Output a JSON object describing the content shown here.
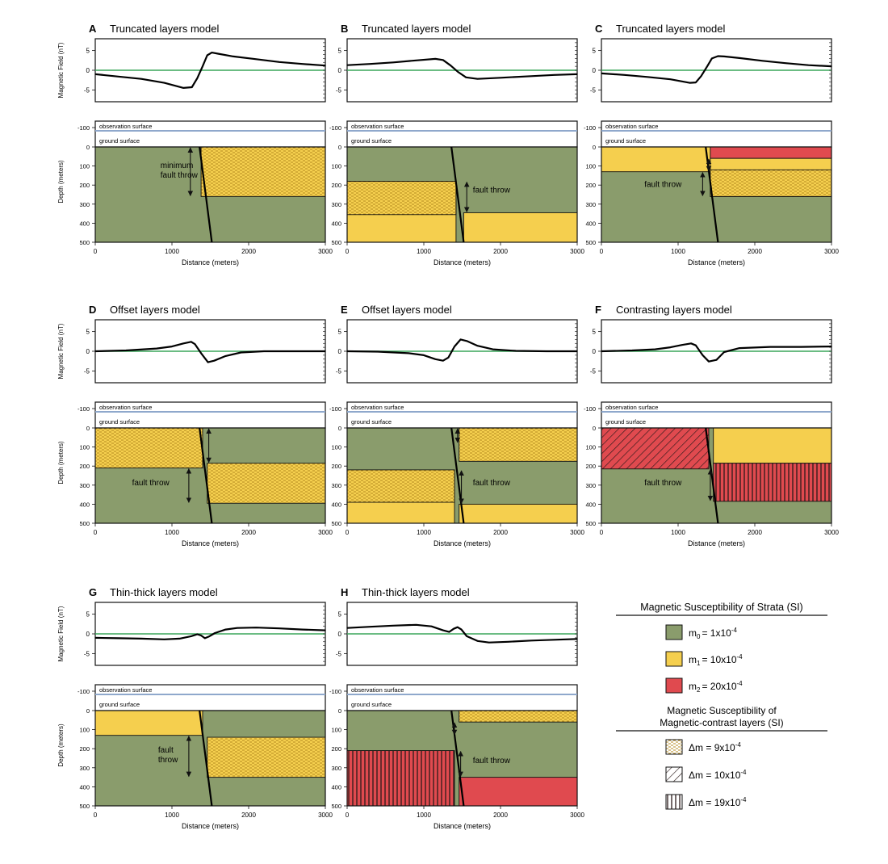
{
  "colors": {
    "green": "#8a9c6c",
    "yellow": "#f5cf4e",
    "red": "#e04a4f",
    "zero_line": "#3aa55a",
    "obs_line": "#8fa8cc"
  },
  "common": {
    "observation_surface": "observation surface",
    "ground_surface": "ground surface",
    "x_axis_label": "Distance (meters)",
    "y_axis_label_mag": "Magnetic Field (nT)",
    "y_axis_label_depth": "Depth (meters)",
    "x_ticks": [
      "0",
      "1000",
      "2000",
      "3000"
    ],
    "mag_ticks": [
      "5",
      "0",
      "-5"
    ],
    "depth_ticks": [
      "-100",
      "0",
      "100",
      "200",
      "300",
      "400",
      "500"
    ]
  },
  "chart_data": [
    {
      "type": "line",
      "id": "A",
      "letter": "A",
      "title": "Truncated layers model",
      "xlim": [
        0,
        3000
      ],
      "ylim": [
        -8,
        8
      ],
      "x": [
        0,
        300,
        600,
        900,
        1150,
        1260,
        1330,
        1400,
        1460,
        1520,
        1600,
        1800,
        2100,
        2400,
        2700,
        3000
      ],
      "y": [
        -1,
        -1.6,
        -2.2,
        -3.2,
        -4.5,
        -4.3,
        -2,
        1,
        3.8,
        4.5,
        4.2,
        3.5,
        2.8,
        2.1,
        1.6,
        1.2
      ],
      "section": {
        "units": [
          {
            "fill": "green",
            "x0": 0,
            "x1": 3000,
            "d0": 0,
            "d1": 500
          },
          {
            "fill": "yellow",
            "pattern": "dots",
            "x0": 1380,
            "x1": 3000,
            "d0": 0,
            "d1": 260
          }
        ],
        "fault": {
          "x_top": 1360,
          "x_bottom": 1520
        },
        "arrows": [
          {
            "x": 1240,
            "d0": 0,
            "d1": 260
          }
        ],
        "throw_label": [
          "minimum",
          "fault throw"
        ],
        "throw_label_pos": [
          850,
          110
        ]
      }
    },
    {
      "type": "line",
      "id": "B",
      "letter": "B",
      "title": "Truncated layers model",
      "xlim": [
        0,
        3000
      ],
      "ylim": [
        -8,
        8
      ],
      "x": [
        0,
        300,
        600,
        900,
        1150,
        1250,
        1350,
        1450,
        1550,
        1700,
        2000,
        2400,
        2700,
        3000
      ],
      "y": [
        1.3,
        1.6,
        2,
        2.5,
        2.9,
        2.6,
        1.2,
        -0.5,
        -1.8,
        -2.2,
        -1.9,
        -1.5,
        -1.2,
        -1
      ],
      "section": {
        "units": [
          {
            "fill": "green",
            "x0": 0,
            "x1": 3000,
            "d0": 0,
            "d1": 500
          },
          {
            "fill": "yellow",
            "x0": 0,
            "x1": 1420,
            "d0": 180,
            "d1": 500
          },
          {
            "fill": "yellow",
            "pattern": "dots",
            "x0": 0,
            "x1": 1420,
            "d0": 180,
            "d1": 355
          },
          {
            "fill": "yellow",
            "x0": 1520,
            "x1": 3000,
            "d0": 345,
            "d1": 500
          }
        ],
        "fault": {
          "x_top": 1360,
          "x_bottom": 1520
        },
        "arrows": [
          {
            "x": 1560,
            "d0": 180,
            "d1": 345
          }
        ],
        "throw_label": [
          "fault throw"
        ],
        "throw_label_pos": [
          1640,
          240
        ]
      }
    },
    {
      "type": "line",
      "id": "C",
      "letter": "C",
      "title": "Truncated layers model",
      "xlim": [
        0,
        3000
      ],
      "ylim": [
        -8,
        8
      ],
      "x": [
        0,
        300,
        600,
        900,
        1150,
        1230,
        1300,
        1380,
        1440,
        1520,
        1600,
        1800,
        2100,
        2400,
        2700,
        3000
      ],
      "y": [
        -0.8,
        -1.2,
        -1.7,
        -2.3,
        -3.2,
        -3.1,
        -1.5,
        1,
        3,
        3.6,
        3.5,
        3.1,
        2.4,
        1.8,
        1.3,
        1
      ],
      "section": {
        "units": [
          {
            "fill": "green",
            "x0": 0,
            "x1": 3000,
            "d0": 0,
            "d1": 500
          },
          {
            "fill": "yellow",
            "x0": 0,
            "x1": 1420,
            "d0": 0,
            "d1": 130
          },
          {
            "fill": "red",
            "x0": 1420,
            "x1": 3000,
            "d0": 0,
            "d1": 60
          },
          {
            "fill": "yellow",
            "x0": 1420,
            "x1": 3000,
            "d0": 60,
            "d1": 260
          },
          {
            "fill": "yellow",
            "pattern": "dots",
            "x0": 1420,
            "x1": 3000,
            "d0": 120,
            "d1": 260
          }
        ],
        "fault": {
          "x_top": 1360,
          "x_bottom": 1520
        },
        "arrows": [
          {
            "x": 1320,
            "d0": 130,
            "d1": 260
          },
          {
            "x": 1400,
            "d0": 60,
            "d1": 130
          }
        ],
        "throw_label": [
          "fault throw"
        ],
        "throw_label_pos": [
          560,
          210
        ]
      }
    },
    {
      "type": "line",
      "id": "D",
      "letter": "D",
      "title": "Offset layers model",
      "xlim": [
        0,
        3000
      ],
      "ylim": [
        -8,
        8
      ],
      "x": [
        0,
        400,
        800,
        1000,
        1150,
        1250,
        1300,
        1380,
        1470,
        1550,
        1700,
        1900,
        2200,
        2600,
        3000
      ],
      "y": [
        0,
        0.2,
        0.7,
        1.2,
        2,
        2.4,
        1.8,
        -0.5,
        -2.8,
        -2.4,
        -1.2,
        -0.3,
        0,
        0,
        0
      ],
      "section": {
        "units": [
          {
            "fill": "green",
            "x0": 0,
            "x1": 3000,
            "d0": 0,
            "d1": 500
          },
          {
            "fill": "yellow",
            "pattern": "dots",
            "x0": 0,
            "x1": 1400,
            "d0": 0,
            "d1": 210
          },
          {
            "fill": "yellow",
            "pattern": "dots",
            "x0": 1460,
            "x1": 3000,
            "d0": 185,
            "d1": 395
          }
        ],
        "fault": {
          "x_top": 1360,
          "x_bottom": 1520
        },
        "arrows": [
          {
            "x": 1220,
            "d0": 210,
            "d1": 395
          },
          {
            "x": 1480,
            "d0": 0,
            "d1": 185
          }
        ],
        "throw_label": [
          "fault throw"
        ],
        "throw_label_pos": [
          480,
          300
        ]
      }
    },
    {
      "type": "line",
      "id": "E",
      "letter": "E",
      "title": "Offset layers model",
      "xlim": [
        0,
        3000
      ],
      "ylim": [
        -8,
        8
      ],
      "x": [
        0,
        400,
        800,
        1000,
        1150,
        1250,
        1320,
        1400,
        1480,
        1560,
        1700,
        1900,
        2200,
        2600,
        3000
      ],
      "y": [
        0,
        -0.1,
        -0.5,
        -1,
        -2,
        -2.4,
        -1.6,
        1.2,
        3,
        2.6,
        1.4,
        0.5,
        0.1,
        0,
        0
      ],
      "section": {
        "units": [
          {
            "fill": "green",
            "x0": 0,
            "x1": 3000,
            "d0": 0,
            "d1": 500
          },
          {
            "fill": "yellow",
            "pattern": "dots",
            "x0": 1460,
            "x1": 3000,
            "d0": 0,
            "d1": 175
          },
          {
            "fill": "yellow",
            "x0": 0,
            "x1": 1400,
            "d0": 220,
            "d1": 500
          },
          {
            "fill": "yellow",
            "pattern": "dots",
            "x0": 0,
            "x1": 1400,
            "d0": 220,
            "d1": 390
          },
          {
            "fill": "yellow",
            "x0": 1460,
            "x1": 3000,
            "d0": 400,
            "d1": 500
          }
        ],
        "fault": {
          "x_top": 1360,
          "x_bottom": 1520
        },
        "arrows": [
          {
            "x": 1440,
            "d0": 0,
            "d1": 80
          },
          {
            "x": 1490,
            "d0": 220,
            "d1": 400
          }
        ],
        "throw_label": [
          "fault throw"
        ],
        "throw_label_pos": [
          1640,
          300
        ]
      }
    },
    {
      "type": "line",
      "id": "F",
      "letter": "F",
      "title": "Contrasting layers model",
      "xlim": [
        0,
        3000
      ],
      "ylim": [
        -8,
        8
      ],
      "x": [
        0,
        400,
        700,
        900,
        1050,
        1170,
        1230,
        1320,
        1400,
        1500,
        1600,
        1800,
        2200,
        2600,
        3000
      ],
      "y": [
        0,
        0.2,
        0.5,
        1,
        1.6,
        2,
        1.5,
        -1,
        -2.6,
        -2.2,
        -0.2,
        0.8,
        1.1,
        1.1,
        1.2
      ],
      "section": {
        "units": [
          {
            "fill": "green",
            "x0": 0,
            "x1": 3000,
            "d0": 0,
            "d1": 500
          },
          {
            "fill": "red",
            "pattern": "diag",
            "x0": 0,
            "x1": 1400,
            "d0": 0,
            "d1": 215
          },
          {
            "fill": "yellow",
            "x0": 1460,
            "x1": 3000,
            "d0": 0,
            "d1": 185
          },
          {
            "fill": "red",
            "pattern": "vert",
            "x0": 1460,
            "x1": 3000,
            "d0": 185,
            "d1": 385
          }
        ],
        "fault": {
          "x_top": 1360,
          "x_bottom": 1520
        },
        "arrows": [
          {
            "x": 1420,
            "d0": 215,
            "d1": 385
          }
        ],
        "throw_label": [
          "fault throw"
        ],
        "throw_label_pos": [
          560,
          300
        ]
      }
    },
    {
      "type": "line",
      "id": "G",
      "letter": "G",
      "title": "Thin-thick layers model",
      "xlim": [
        0,
        3000
      ],
      "ylim": [
        -8,
        8
      ],
      "x": [
        0,
        300,
        600,
        900,
        1100,
        1250,
        1330,
        1380,
        1430,
        1480,
        1560,
        1700,
        1850,
        2100,
        2400,
        2700,
        3000
      ],
      "y": [
        -1,
        -1.1,
        -1.2,
        -1.4,
        -1.2,
        -0.6,
        -0.1,
        -0.4,
        -1.1,
        -0.7,
        0.2,
        1.1,
        1.5,
        1.6,
        1.4,
        1.1,
        0.9
      ],
      "section": {
        "units": [
          {
            "fill": "green",
            "x0": 0,
            "x1": 3000,
            "d0": 0,
            "d1": 500
          },
          {
            "fill": "yellow",
            "x0": 0,
            "x1": 1400,
            "d0": 0,
            "d1": 130
          },
          {
            "fill": "yellow",
            "pattern": "dots",
            "x0": 1460,
            "x1": 3000,
            "d0": 140,
            "d1": 350
          }
        ],
        "fault": {
          "x_top": 1360,
          "x_bottom": 1520
        },
        "arrows": [
          {
            "x": 1220,
            "d0": 130,
            "d1": 350
          }
        ],
        "throw_label": [
          "fault",
          "throw"
        ],
        "throw_label_pos": [
          820,
          220
        ]
      }
    },
    {
      "type": "line",
      "id": "H",
      "letter": "H",
      "title": "Thin-thick layers model",
      "xlim": [
        0,
        3000
      ],
      "ylim": [
        -8,
        8
      ],
      "x": [
        0,
        300,
        600,
        900,
        1100,
        1250,
        1330,
        1390,
        1440,
        1490,
        1560,
        1700,
        1850,
        2100,
        2400,
        2700,
        3000
      ],
      "y": [
        1.5,
        1.8,
        2.1,
        2.3,
        1.9,
        0.9,
        0.5,
        1.3,
        1.7,
        1.1,
        -0.6,
        -1.8,
        -2.2,
        -2,
        -1.7,
        -1.5,
        -1.3
      ],
      "section": {
        "units": [
          {
            "fill": "green",
            "x0": 0,
            "x1": 3000,
            "d0": 0,
            "d1": 500
          },
          {
            "fill": "yellow",
            "pattern": "dots",
            "x0": 1460,
            "x1": 3000,
            "d0": 0,
            "d1": 60
          },
          {
            "fill": "red",
            "pattern": "vert",
            "x0": 0,
            "x1": 1400,
            "d0": 210,
            "d1": 500
          },
          {
            "fill": "red",
            "x0": 1460,
            "x1": 3000,
            "d0": 350,
            "d1": 500
          }
        ],
        "fault": {
          "x_top": 1360,
          "x_bottom": 1520
        },
        "arrows": [
          {
            "x": 1400,
            "d0": 60,
            "d1": 130
          },
          {
            "x": 1480,
            "d0": 210,
            "d1": 350
          }
        ],
        "throw_label": [
          "fault throw"
        ],
        "throw_label_pos": [
          1640,
          275
        ]
      }
    }
  ],
  "legend": {
    "strata_title": "Magnetic Susceptibility of Strata (SI)",
    "strata_items": [
      {
        "fill": "green",
        "sym": "m",
        "sub": "0",
        "text": "=  1x10",
        "exp": "-4"
      },
      {
        "fill": "yellow",
        "sym": "m",
        "sub": "1",
        "text": "= 10x10",
        "exp": "-4"
      },
      {
        "fill": "red",
        "sym": "m",
        "sub": "2",
        "text": "= 20x10",
        "exp": "-4"
      }
    ],
    "contrast_title": [
      "Magnetic Susceptibility of",
      "Magnetic-contrast layers (SI)"
    ],
    "contrast_items": [
      {
        "pattern": "dots",
        "text": "Δm =  9x10",
        "exp": "-4"
      },
      {
        "pattern": "diag",
        "text": "Δm = 10x10",
        "exp": "-4"
      },
      {
        "pattern": "vert",
        "text": "Δm = 19x10",
        "exp": "-4"
      }
    ]
  }
}
